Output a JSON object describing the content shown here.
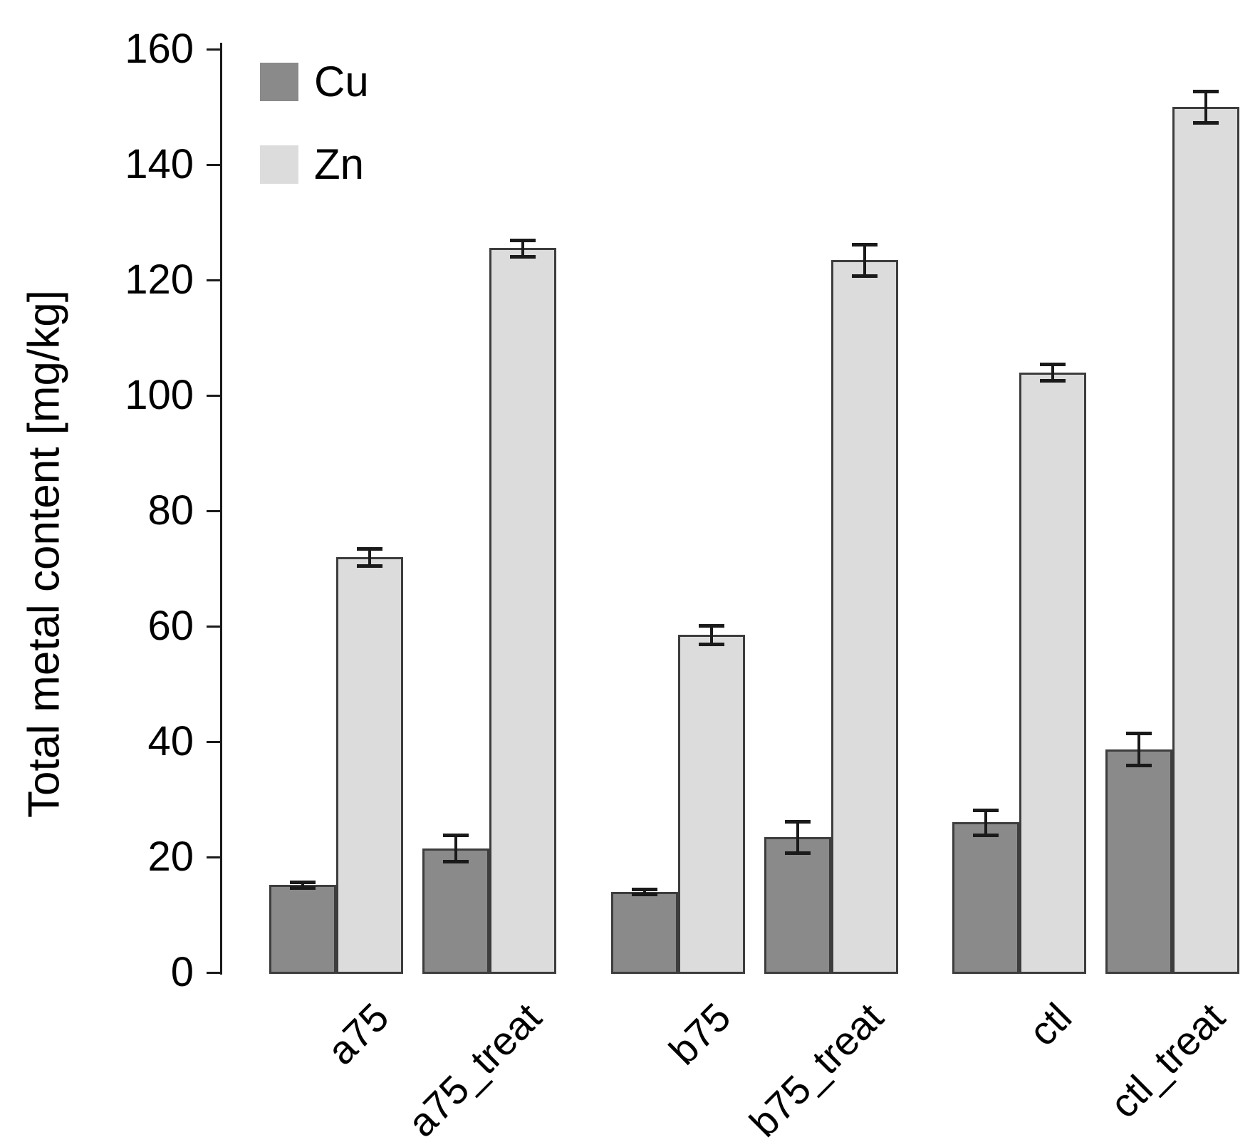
{
  "chart_data": {
    "type": "bar",
    "title": "",
    "xlabel": "",
    "ylabel": "Total metal content [mg/kg]",
    "ylim": [
      0,
      160
    ],
    "yticks": [
      0,
      20,
      40,
      60,
      80,
      100,
      120,
      140,
      160
    ],
    "grid": false,
    "legend_position": "top-left",
    "categories": [
      "a75",
      "a75_treat",
      "b75",
      "b75_treat",
      "ctl",
      "ctl_treat"
    ],
    "series": [
      {
        "name": "Cu",
        "color": "#8a8a8a",
        "values": [
          15.2,
          21.5,
          14.0,
          23.5,
          26.0,
          38.7
        ],
        "errors": [
          0.5,
          2.3,
          0.4,
          2.7,
          2.2,
          2.8
        ]
      },
      {
        "name": "Zn",
        "color": "#dcdcdc",
        "values": [
          72.0,
          125.5,
          58.5,
          123.5,
          104.0,
          150.0
        ],
        "errors": [
          1.5,
          1.4,
          1.6,
          2.7,
          1.4,
          2.7
        ]
      }
    ],
    "error_bars": true
  },
  "colors": {
    "background": "#ffffff",
    "axis": "#1a1a1a",
    "text": "#000000",
    "bar_border": "#3d3d3d",
    "cu_fill": "#8a8a8a",
    "zn_fill": "#dcdcdc"
  }
}
